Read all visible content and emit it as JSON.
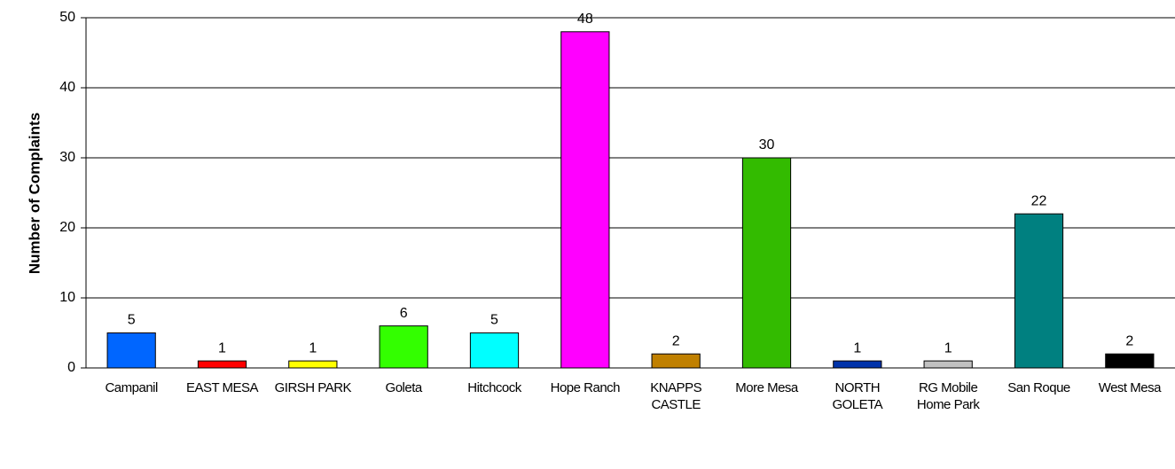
{
  "chart_data": {
    "type": "bar",
    "ylabel": "Number of Complaints",
    "categories": [
      "Campanil",
      "EAST MESA",
      "GIRSH PARK",
      "Goleta",
      "Hitchcock",
      "Hope Ranch",
      "KNAPPS CASTLE",
      "More Mesa",
      "NORTH GOLETA",
      "RG Mobile Home Park",
      "San Roque",
      "West Mesa"
    ],
    "values": [
      5,
      1,
      1,
      6,
      5,
      48,
      2,
      30,
      1,
      1,
      22,
      2
    ],
    "colors": [
      "#0066ff",
      "#ff0000",
      "#ffff00",
      "#33ff00",
      "#00ffff",
      "#ff00ff",
      "#c08000",
      "#33bb00",
      "#0033aa",
      "#c0c0c0",
      "#008080",
      "#000000"
    ],
    "ylim": [
      0,
      50
    ],
    "yticks": [
      0,
      10,
      20,
      30,
      40,
      50
    ],
    "grid": true
  }
}
